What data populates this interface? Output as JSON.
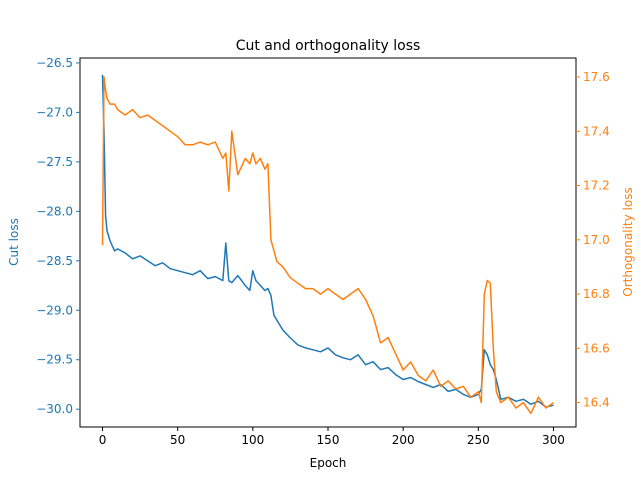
{
  "chart_data": {
    "type": "line",
    "title": "Cut and orthogonality loss",
    "xlabel": "Epoch",
    "xlim": [
      -15,
      315
    ],
    "xticks": [
      0,
      50,
      100,
      150,
      200,
      250,
      300
    ],
    "x": [
      0,
      1,
      2,
      3,
      5,
      8,
      10,
      15,
      20,
      25,
      30,
      35,
      40,
      45,
      50,
      55,
      60,
      65,
      70,
      75,
      80,
      82,
      84,
      86,
      90,
      95,
      98,
      100,
      102,
      105,
      108,
      110,
      112,
      114,
      116,
      120,
      125,
      130,
      135,
      140,
      145,
      150,
      155,
      160,
      165,
      170,
      175,
      180,
      185,
      190,
      195,
      200,
      205,
      210,
      215,
      220,
      225,
      230,
      235,
      240,
      245,
      250,
      252,
      254,
      256,
      258,
      260,
      262,
      265,
      270,
      275,
      280,
      285,
      290,
      295,
      300
    ],
    "grid": false,
    "axes": [
      {
        "side": "left",
        "label": "Cut loss",
        "color": "#1f77b4",
        "ylim": [
          -30.18,
          -26.45
        ],
        "ticks": [
          -30.0,
          -29.5,
          -29.0,
          -28.5,
          -28.0,
          -27.5,
          -27.0,
          -26.5
        ],
        "tick_labels": [
          "−30.0",
          "−29.5",
          "−29.0",
          "−28.5",
          "−28.0",
          "−27.5",
          "−27.0",
          "−26.5"
        ]
      },
      {
        "side": "right",
        "label": "Orthogonality loss",
        "color": "#ff7f0e",
        "ylim": [
          16.31,
          17.67
        ],
        "ticks": [
          16.4,
          16.6,
          16.8,
          17.0,
          17.2,
          17.4,
          17.6
        ],
        "tick_labels": [
          "16.4",
          "16.6",
          "16.8",
          "17.0",
          "17.2",
          "17.4",
          "17.6"
        ]
      }
    ],
    "series": [
      {
        "axis": "left",
        "color": "#1f77b4",
        "values": [
          -26.62,
          -27.2,
          -28.05,
          -28.2,
          -28.3,
          -28.4,
          -28.38,
          -28.42,
          -28.48,
          -28.45,
          -28.5,
          -28.55,
          -28.52,
          -28.58,
          -28.6,
          -28.62,
          -28.64,
          -28.6,
          -28.68,
          -28.66,
          -28.7,
          -28.32,
          -28.7,
          -28.72,
          -28.65,
          -28.75,
          -28.8,
          -28.6,
          -28.7,
          -28.75,
          -28.8,
          -28.78,
          -28.85,
          -29.05,
          -29.1,
          -29.2,
          -29.28,
          -29.35,
          -29.38,
          -29.4,
          -29.42,
          -29.38,
          -29.45,
          -29.48,
          -29.5,
          -29.45,
          -29.55,
          -29.52,
          -29.6,
          -29.58,
          -29.65,
          -29.7,
          -29.68,
          -29.72,
          -29.75,
          -29.78,
          -29.75,
          -29.82,
          -29.8,
          -29.85,
          -29.88,
          -29.85,
          -29.8,
          -29.4,
          -29.45,
          -29.55,
          -29.6,
          -29.7,
          -29.9,
          -29.88,
          -29.92,
          -29.9,
          -29.95,
          -29.92,
          -29.98,
          -29.96
        ]
      },
      {
        "axis": "right",
        "color": "#ff7f0e",
        "values": [
          16.98,
          17.6,
          17.55,
          17.52,
          17.5,
          17.5,
          17.48,
          17.46,
          17.48,
          17.45,
          17.46,
          17.44,
          17.42,
          17.4,
          17.38,
          17.35,
          17.35,
          17.36,
          17.35,
          17.36,
          17.3,
          17.32,
          17.18,
          17.4,
          17.24,
          17.3,
          17.28,
          17.32,
          17.28,
          17.3,
          17.26,
          17.28,
          17.0,
          16.96,
          16.92,
          16.9,
          16.86,
          16.84,
          16.82,
          16.82,
          16.8,
          16.82,
          16.8,
          16.78,
          16.8,
          16.82,
          16.78,
          16.72,
          16.62,
          16.64,
          16.58,
          16.52,
          16.55,
          16.5,
          16.48,
          16.52,
          16.46,
          16.48,
          16.45,
          16.46,
          16.42,
          16.44,
          16.4,
          16.8,
          16.85,
          16.84,
          16.6,
          16.44,
          16.4,
          16.42,
          16.38,
          16.4,
          16.36,
          16.42,
          16.38,
          16.4
        ]
      }
    ]
  }
}
